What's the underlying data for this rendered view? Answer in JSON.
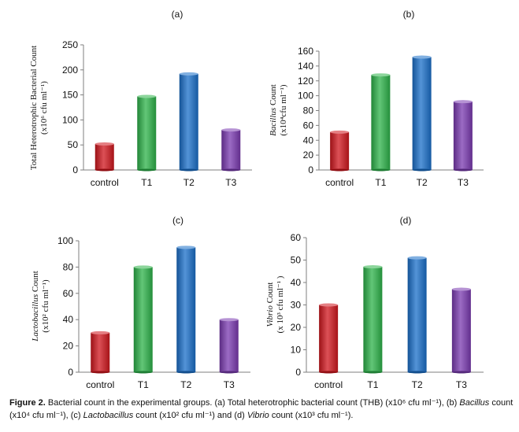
{
  "chart_data": [
    {
      "type": "bar",
      "panel": "(a)",
      "categories": [
        "control",
        "T1",
        "T2",
        "T3"
      ],
      "values": [
        52,
        147,
        192,
        80
      ],
      "colors": [
        "#d0161d",
        "#2db34a",
        "#1a6fc9",
        "#7a3ab0"
      ],
      "ylabel_line1": "Total Heterotrophic Bacterial Count",
      "ylabel_line2": "(x10⁶ cfu ml⁻¹)",
      "ylim": [
        0,
        250
      ],
      "yticks": [
        0,
        50,
        100,
        150,
        200,
        250
      ]
    },
    {
      "type": "bar",
      "panel": "(b)",
      "categories": [
        "control",
        "T1",
        "T2",
        "T3"
      ],
      "values": [
        51,
        128,
        152,
        92
      ],
      "colors": [
        "#d0161d",
        "#2db34a",
        "#1a6fc9",
        "#7a3ab0"
      ],
      "ylabel_italic": "Bacillus",
      "ylabel_line1": " Count",
      "ylabel_line2": "(x10⁴cfu ml⁻¹)",
      "ylim": [
        0,
        160
      ],
      "yticks": [
        0,
        20,
        40,
        60,
        80,
        100,
        120,
        140,
        160
      ]
    },
    {
      "type": "bar",
      "panel": "(c)",
      "categories": [
        "control",
        "T1",
        "T2",
        "T3"
      ],
      "values": [
        30,
        80,
        95,
        40
      ],
      "colors": [
        "#d0161d",
        "#2db34a",
        "#1a6fc9",
        "#7a3ab0"
      ],
      "ylabel_italic": "Lactobacillus",
      "ylabel_line1": " Count",
      "ylabel_line2": "(x10² cfu ml⁻¹)",
      "ylim": [
        0,
        100
      ],
      "yticks": [
        0,
        20,
        40,
        60,
        80,
        100
      ]
    },
    {
      "type": "bar",
      "panel": "(d)",
      "categories": [
        "control",
        "T1",
        "T2",
        "T3"
      ],
      "values": [
        30,
        47,
        51,
        37
      ],
      "colors": [
        "#d0161d",
        "#2db34a",
        "#1a6fc9",
        "#7a3ab0"
      ],
      "ylabel_italic": "Vibrio",
      "ylabel_line1": " Count",
      "ylabel_line2": "(x 10³ cfu ml⁻¹ )",
      "ylim": [
        0,
        60
      ],
      "yticks": [
        0,
        10,
        20,
        30,
        40,
        50,
        60
      ]
    }
  ],
  "caption": {
    "label": "Figure 2.",
    "t1": " Bacterial count in the experimental groups. (a) Total heterotrophic bacterial count (THB) (x10⁶ cfu ml⁻¹), (b) ",
    "i1": "Bacillus",
    "t2": " count (x10⁴ cfu ml⁻¹), (c) ",
    "i2": "Lactobacillus",
    "t3": " count (x10² cfu ml⁻¹) and (d) ",
    "i3": "Vibrio",
    "t4": " count (x10³ cfu ml⁻¹)."
  }
}
